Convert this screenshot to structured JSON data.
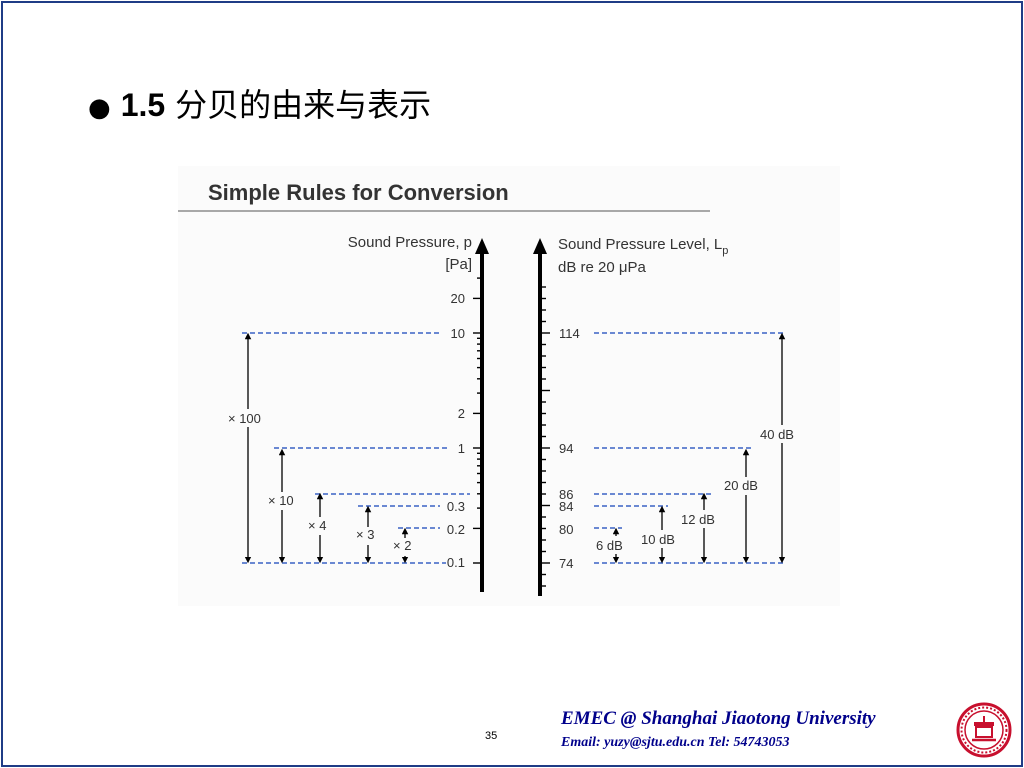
{
  "slide": {
    "bullet": "●",
    "section_number": "1.5",
    "heading": "分贝的由来与表示",
    "page_number": "35"
  },
  "diagram": {
    "title": "Simple Rules for Conversion",
    "left_axis": {
      "label_line1": "Sound Pressure, p",
      "label_line2": "[Pa]",
      "ticks": [
        "20",
        "10",
        "2",
        "1",
        "0.3",
        "0.2",
        "0.1"
      ]
    },
    "right_axis": {
      "label_line1": "Sound Pressure Level, L",
      "label_sub": "p",
      "label_line2": "dB re 20 μPa",
      "ticks": [
        "114",
        "94",
        "86",
        "84",
        "80",
        "74"
      ]
    },
    "ratios": [
      "× 100",
      "× 10",
      "× 4",
      "× 3",
      "× 2"
    ],
    "level_differences": [
      "40 dB",
      "20 dB",
      "12 dB",
      "10 dB",
      "6 dB"
    ],
    "colors": {
      "dashed_line": "#3a63c4",
      "axis": "#000000"
    }
  },
  "footer": {
    "org": "EMEC  @  Shanghai Jiaotong University",
    "contact": "Email: yuzy@sjtu.edu.cn  Tel: 54743053",
    "logo_icon": "sjtu-logo-icon",
    "colors": {
      "text": "#00008b",
      "logo": "#c8102e"
    }
  }
}
